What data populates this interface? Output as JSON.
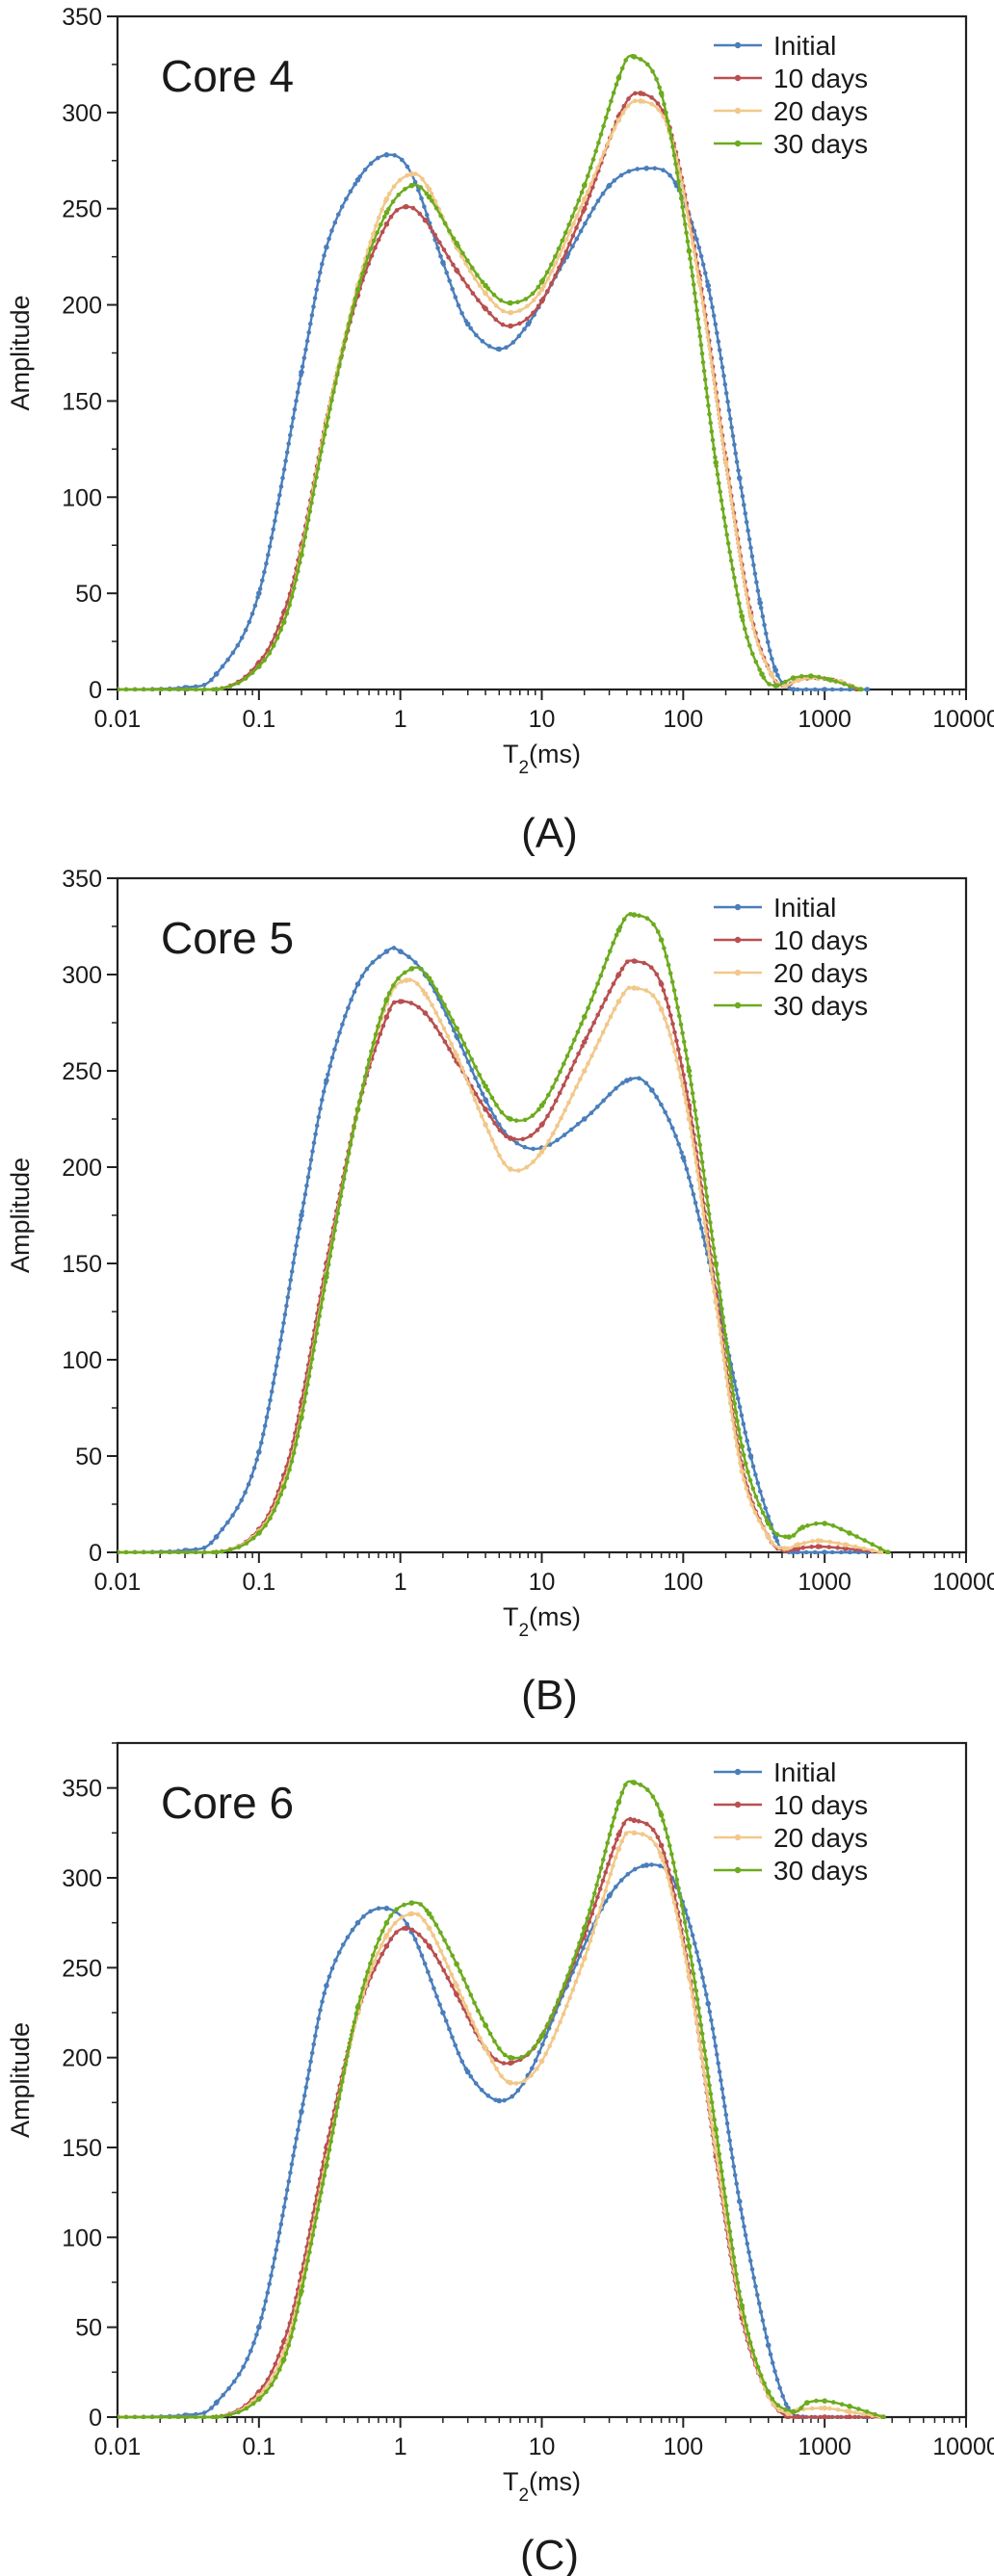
{
  "series_meta": [
    {
      "name": "Initial",
      "color": "#4a7ebb"
    },
    {
      "name": "10 days",
      "color": "#b94f4f"
    },
    {
      "name": "20 days",
      "color": "#f2c88a"
    },
    {
      "name": "30 days",
      "color": "#6cab1e"
    }
  ],
  "chart_data": [
    {
      "type": "line",
      "panel_label": "(A)",
      "title": "Core 4",
      "xlabel_main": "T",
      "xlabel_sub": "2",
      "xlabel_unit": "(ms)",
      "ylabel": "Amplitude",
      "xscale": "log",
      "xlim": [
        0.01,
        10000
      ],
      "ylim": [
        0,
        350
      ],
      "xticks": [
        0.01,
        0.1,
        1,
        10,
        100,
        1000,
        10000
      ],
      "xtick_labels": [
        "0.01",
        "0.1",
        "1",
        "10",
        "100",
        "1000",
        "10000"
      ],
      "yticks": [
        0,
        50,
        100,
        150,
        200,
        250,
        300,
        350
      ],
      "ytick_labels": [
        "0",
        "50",
        "100",
        "150",
        "200",
        "250",
        "300",
        "350"
      ],
      "legend_position": "top-right",
      "series": [
        {
          "name": "Initial",
          "color": "#4a7ebb",
          "x": [
            0.01,
            0.03,
            0.05,
            0.1,
            0.2,
            0.3,
            0.5,
            0.8,
            1.2,
            2,
            3,
            5,
            8,
            15,
            30,
            55,
            90,
            150,
            250,
            350,
            450,
            600,
            1000,
            2000
          ],
          "y": [
            0,
            1,
            8,
            50,
            165,
            230,
            265,
            278,
            268,
            222,
            190,
            177,
            190,
            225,
            262,
            271,
            262,
            210,
            110,
            45,
            10,
            0,
            0,
            0
          ]
        },
        {
          "name": "10 days",
          "color": "#b94f4f",
          "x": [
            0.01,
            0.05,
            0.1,
            0.15,
            0.2,
            0.3,
            0.5,
            0.8,
            1.1,
            1.5,
            2.5,
            4,
            6,
            10,
            20,
            35,
            50,
            80,
            130,
            200,
            300,
            420,
            520,
            650,
            900,
            1300,
            1700
          ],
          "y": [
            0,
            0,
            14,
            40,
            75,
            140,
            205,
            242,
            251,
            244,
            218,
            198,
            189,
            202,
            250,
            298,
            310,
            292,
            215,
            120,
            40,
            8,
            2,
            5,
            6,
            4,
            0
          ]
        },
        {
          "name": "20 days",
          "color": "#f2c88a",
          "x": [
            0.01,
            0.05,
            0.1,
            0.15,
            0.2,
            0.3,
            0.5,
            0.8,
            1.2,
            1.6,
            2.5,
            4,
            6,
            10,
            20,
            35,
            50,
            80,
            130,
            200,
            300,
            420,
            520,
            650,
            900,
            1300,
            1800
          ],
          "y": [
            0,
            0,
            12,
            35,
            72,
            140,
            210,
            255,
            268,
            260,
            230,
            206,
            196,
            208,
            255,
            296,
            306,
            290,
            212,
            118,
            38,
            8,
            2,
            5,
            6,
            4,
            0
          ]
        },
        {
          "name": "30 days",
          "color": "#6cab1e",
          "x": [
            0.01,
            0.05,
            0.1,
            0.15,
            0.2,
            0.3,
            0.5,
            0.8,
            1.2,
            1.6,
            2.5,
            4,
            6,
            10,
            20,
            35,
            45,
            70,
            110,
            170,
            260,
            360,
            450,
            600,
            800,
            1100,
            1800
          ],
          "y": [
            0,
            0,
            12,
            35,
            70,
            137,
            208,
            248,
            262,
            256,
            232,
            210,
            201,
            212,
            262,
            318,
            329,
            310,
            228,
            118,
            38,
            8,
            2,
            6,
            7,
            5,
            0
          ]
        }
      ]
    },
    {
      "type": "line",
      "panel_label": "(B)",
      "title": "Core 5",
      "xlabel_main": "T",
      "xlabel_sub": "2",
      "xlabel_unit": "(ms)",
      "ylabel": "Amplitude",
      "xscale": "log",
      "xlim": [
        0.01,
        10000
      ],
      "ylim": [
        0,
        350
      ],
      "xticks": [
        0.01,
        0.1,
        1,
        10,
        100,
        1000,
        10000
      ],
      "xtick_labels": [
        "0.01",
        "0.1",
        "1",
        "10",
        "100",
        "1000",
        "10000"
      ],
      "yticks": [
        0,
        50,
        100,
        150,
        200,
        250,
        300,
        350
      ],
      "ytick_labels": [
        "0",
        "50",
        "100",
        "150",
        "200",
        "250",
        "300",
        "350"
      ],
      "legend_position": "top-right",
      "series": [
        {
          "name": "Initial",
          "color": "#4a7ebb",
          "x": [
            0.01,
            0.03,
            0.05,
            0.1,
            0.2,
            0.3,
            0.5,
            0.8,
            1,
            1.5,
            2.5,
            4,
            6,
            10,
            20,
            40,
            60,
            100,
            170,
            300,
            450,
            520,
            600,
            1000,
            2000
          ],
          "y": [
            0,
            1,
            8,
            52,
            175,
            245,
            295,
            312,
            312,
            300,
            268,
            235,
            215,
            210,
            225,
            245,
            240,
            205,
            135,
            50,
            8,
            1,
            0,
            0,
            0
          ]
        },
        {
          "name": "10 days",
          "color": "#b94f4f",
          "x": [
            0.01,
            0.05,
            0.1,
            0.15,
            0.2,
            0.3,
            0.5,
            0.8,
            1,
            1.5,
            2.5,
            4,
            6,
            10,
            20,
            35,
            45,
            70,
            110,
            170,
            260,
            400,
            520,
            650,
            900,
            1400,
            2500
          ],
          "y": [
            0,
            0,
            12,
            40,
            78,
            150,
            230,
            278,
            286,
            280,
            255,
            230,
            215,
            222,
            265,
            300,
            307,
            295,
            232,
            135,
            45,
            8,
            1,
            2,
            3,
            2,
            0
          ]
        },
        {
          "name": "20 days",
          "color": "#f2c88a",
          "x": [
            0.01,
            0.05,
            0.1,
            0.15,
            0.2,
            0.3,
            0.5,
            0.8,
            1.1,
            1.5,
            2.5,
            4,
            6,
            10,
            20,
            35,
            45,
            70,
            110,
            170,
            260,
            400,
            520,
            650,
            900,
            1400,
            2500
          ],
          "y": [
            0,
            0,
            11,
            36,
            72,
            145,
            230,
            285,
            297,
            290,
            258,
            222,
            199,
            208,
            250,
            286,
            293,
            282,
            225,
            130,
            42,
            8,
            2,
            4,
            6,
            4,
            0
          ]
        },
        {
          "name": "30 days",
          "color": "#6cab1e",
          "x": [
            0.01,
            0.05,
            0.1,
            0.15,
            0.2,
            0.3,
            0.5,
            0.8,
            1.2,
            1.6,
            2.5,
            4,
            6,
            10,
            20,
            35,
            45,
            70,
            110,
            170,
            260,
            400,
            560,
            700,
            1000,
            1500,
            2800
          ],
          "y": [
            0,
            0,
            10,
            34,
            70,
            143,
            230,
            287,
            303,
            298,
            272,
            242,
            225,
            232,
            278,
            323,
            331,
            318,
            250,
            150,
            55,
            15,
            8,
            13,
            15,
            10,
            0
          ]
        }
      ]
    },
    {
      "type": "line",
      "panel_label": "(C)",
      "title": "Core 6",
      "xlabel_main": "T",
      "xlabel_sub": "2",
      "xlabel_unit": "(ms)",
      "ylabel": "Amplitude",
      "xscale": "log",
      "xlim": [
        0.01,
        10000
      ],
      "ylim": [
        0,
        375
      ],
      "xticks": [
        0.01,
        0.1,
        1,
        10,
        100,
        1000,
        10000
      ],
      "xtick_labels": [
        "0.01",
        "0.1",
        "1",
        "10",
        "100",
        "1000",
        "10000"
      ],
      "yticks": [
        0,
        50,
        100,
        150,
        200,
        250,
        300,
        350
      ],
      "ytick_labels": [
        "0",
        "50",
        "100",
        "150",
        "200",
        "250",
        "300",
        "350"
      ],
      "legend_position": "top-right",
      "series": [
        {
          "name": "Initial",
          "color": "#4a7ebb",
          "x": [
            0.01,
            0.03,
            0.05,
            0.1,
            0.2,
            0.3,
            0.5,
            0.8,
            1.2,
            2,
            3,
            5,
            8,
            15,
            30,
            55,
            90,
            150,
            250,
            400,
            550,
            700,
            1000,
            2000
          ],
          "y": [
            0,
            1,
            8,
            50,
            170,
            240,
            275,
            283,
            270,
            225,
            192,
            176,
            190,
            240,
            290,
            307,
            295,
            230,
            120,
            40,
            5,
            0,
            0,
            0
          ]
        },
        {
          "name": "10 days",
          "color": "#b94f4f",
          "x": [
            0.01,
            0.05,
            0.1,
            0.15,
            0.2,
            0.3,
            0.5,
            0.8,
            1.1,
            1.6,
            2.5,
            4,
            6,
            10,
            20,
            35,
            45,
            70,
            110,
            170,
            260,
            400,
            550,
            650,
            1000,
            1500,
            2500
          ],
          "y": [
            0,
            0,
            14,
            42,
            80,
            150,
            225,
            262,
            272,
            262,
            235,
            205,
            197,
            212,
            268,
            324,
            332,
            318,
            248,
            145,
            55,
            12,
            0,
            0,
            0,
            0,
            0
          ]
        },
        {
          "name": "20 days",
          "color": "#f2c88a",
          "x": [
            0.01,
            0.05,
            0.1,
            0.15,
            0.2,
            0.3,
            0.5,
            0.8,
            1.2,
            1.6,
            2.5,
            4,
            6,
            10,
            20,
            35,
            45,
            70,
            110,
            170,
            260,
            400,
            550,
            650,
            1000,
            1500,
            2500
          ],
          "y": [
            0,
            0,
            12,
            36,
            74,
            143,
            225,
            268,
            280,
            272,
            240,
            205,
            186,
            198,
            255,
            316,
            325,
            312,
            245,
            148,
            58,
            12,
            2,
            4,
            5,
            3,
            0
          ]
        },
        {
          "name": "30 days",
          "color": "#6cab1e",
          "x": [
            0.01,
            0.05,
            0.1,
            0.15,
            0.2,
            0.3,
            0.5,
            0.8,
            1.2,
            1.6,
            2.5,
            4,
            6,
            10,
            20,
            35,
            45,
            70,
            110,
            170,
            260,
            400,
            600,
            750,
            1000,
            1500,
            2600
          ],
          "y": [
            0,
            0,
            10,
            32,
            70,
            140,
            228,
            275,
            286,
            280,
            252,
            218,
            200,
            212,
            272,
            342,
            353,
            335,
            262,
            160,
            62,
            14,
            3,
            8,
            9,
            6,
            0
          ]
        }
      ]
    }
  ]
}
